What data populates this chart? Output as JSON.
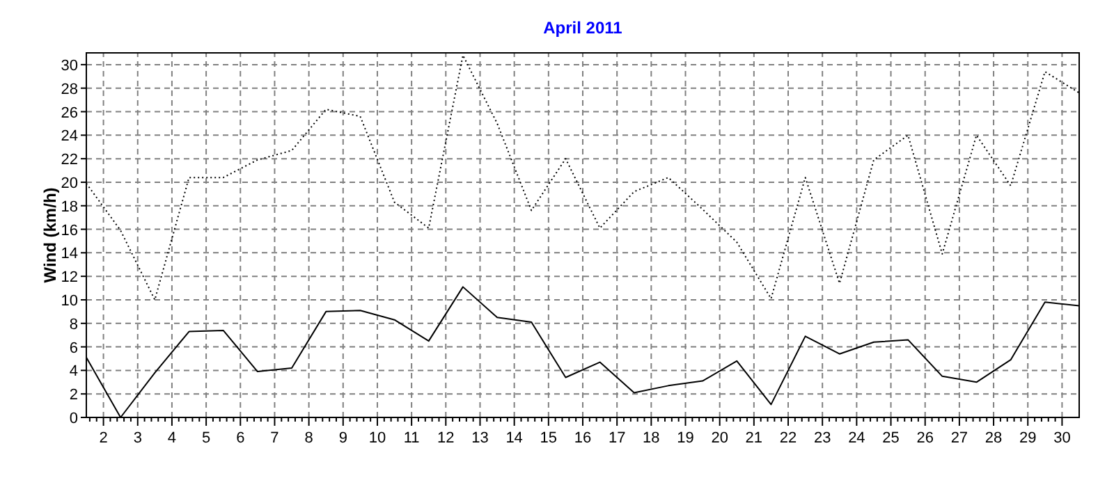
{
  "chart_data": {
    "type": "line",
    "title": "April 2011",
    "ylabel": "Wind  (km/h)",
    "x": [
      1.5,
      2.5,
      3.5,
      4.5,
      5.5,
      6.5,
      7.5,
      8.5,
      9.5,
      10.5,
      11.5,
      12.5,
      13.5,
      14.5,
      15.5,
      16.5,
      17.5,
      18.5,
      19.5,
      20.5,
      21.5,
      22.5,
      23.5,
      24.5,
      25.5,
      26.5,
      27.5,
      28.5,
      29.5,
      30.5
    ],
    "series": [
      {
        "color": "#000000",
        "line_style": "dotted",
        "values": [
          19.9,
          15.9,
          10.0,
          20.4,
          20.4,
          21.9,
          22.7,
          26.2,
          25.6,
          18.3,
          16.1,
          30.8,
          25.0,
          17.6,
          22.0,
          16.1,
          19.2,
          20.4,
          17.7,
          14.9,
          10.1,
          20.4,
          11.4,
          21.9,
          24.0,
          13.9,
          24.0,
          19.7,
          29.4,
          27.6
        ]
      },
      {
        "color": "#000000",
        "line_style": "solid",
        "values": [
          5.1,
          0,
          3.8,
          7.3,
          7.4,
          3.9,
          4.2,
          9.0,
          9.1,
          8.3,
          6.5,
          11.1,
          8.5,
          8.1,
          3.4,
          4.7,
          2.1,
          2.7,
          3.1,
          4.8,
          1.1,
          6.9,
          5.4,
          6.4,
          6.6,
          3.5,
          3.0,
          4.9,
          9.8,
          9.5
        ]
      }
    ],
    "xlim": [
      1.5,
      30.5
    ],
    "xticks": [
      2,
      3,
      4,
      5,
      6,
      7,
      8,
      9,
      10,
      11,
      12,
      13,
      14,
      15,
      16,
      17,
      18,
      19,
      20,
      21,
      22,
      23,
      24,
      25,
      26,
      27,
      28,
      29,
      30
    ],
    "ylim": [
      0,
      31
    ],
    "yticks": [
      0,
      2,
      4,
      6,
      8,
      10,
      12,
      14,
      16,
      18,
      20,
      22,
      24,
      26,
      28,
      30
    ],
    "grid": true,
    "marker": "none"
  }
}
